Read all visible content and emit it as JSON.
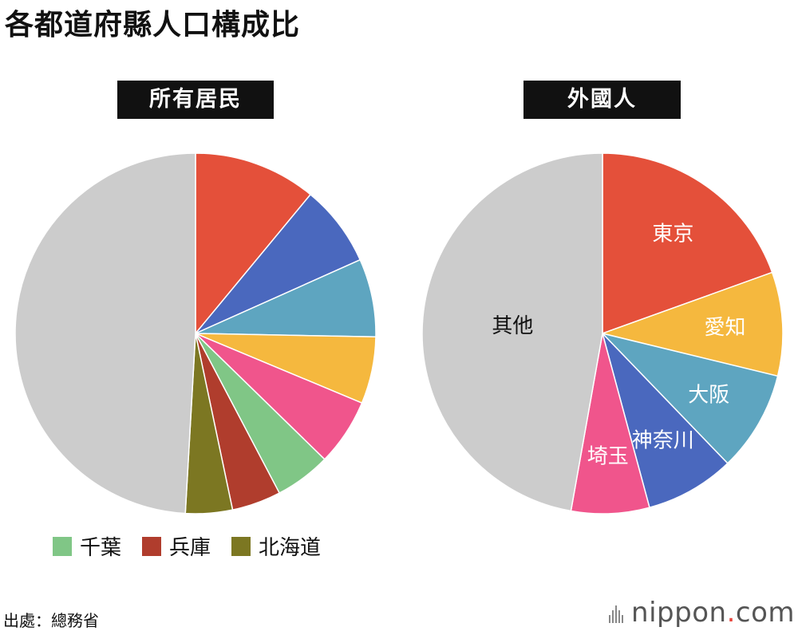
{
  "title": "各都道府縣人口構成比",
  "source": "出處：總務省",
  "brand": {
    "name": "nippon",
    "dot": ".",
    "tld": "com"
  },
  "chart_data": [
    {
      "type": "pie",
      "title": "所有居民",
      "series": [
        {
          "label": "",
          "value": 11.0,
          "color": "#e4503a"
        },
        {
          "label": "",
          "value": 7.3,
          "color": "#4a68be"
        },
        {
          "label": "",
          "value": 7.0,
          "color": "#5ea5c0"
        },
        {
          "label": "",
          "value": 6.0,
          "color": "#f5b83e"
        },
        {
          "label": "",
          "value": 6.0,
          "color": "#f0558c"
        },
        {
          "label": "千葉",
          "value": 5.0,
          "color": "#80c686"
        },
        {
          "label": "兵庫",
          "value": 4.4,
          "color": "#b03d2d"
        },
        {
          "label": "北海道",
          "value": 4.2,
          "color": "#7c7722"
        },
        {
          "label": "",
          "value": 49.1,
          "color": "#cccccc"
        }
      ]
    },
    {
      "type": "pie",
      "title": "外國人",
      "series": [
        {
          "label": "東京",
          "value": 19.5,
          "color": "#e4503a"
        },
        {
          "label": "愛知",
          "value": 9.3,
          "color": "#f5b83e"
        },
        {
          "label": "大阪",
          "value": 9.0,
          "color": "#5ea5c0"
        },
        {
          "label": "神奈川",
          "value": 8.0,
          "color": "#4a68be"
        },
        {
          "label": "埼玉",
          "value": 7.0,
          "color": "#f0558c"
        },
        {
          "label": "其他",
          "value": 47.2,
          "color": "#cccccc"
        }
      ]
    }
  ],
  "legend": [
    {
      "label": "千葉",
      "color": "#80c686"
    },
    {
      "label": "兵庫",
      "color": "#b03d2d"
    },
    {
      "label": "北海道",
      "color": "#7c7722"
    }
  ]
}
